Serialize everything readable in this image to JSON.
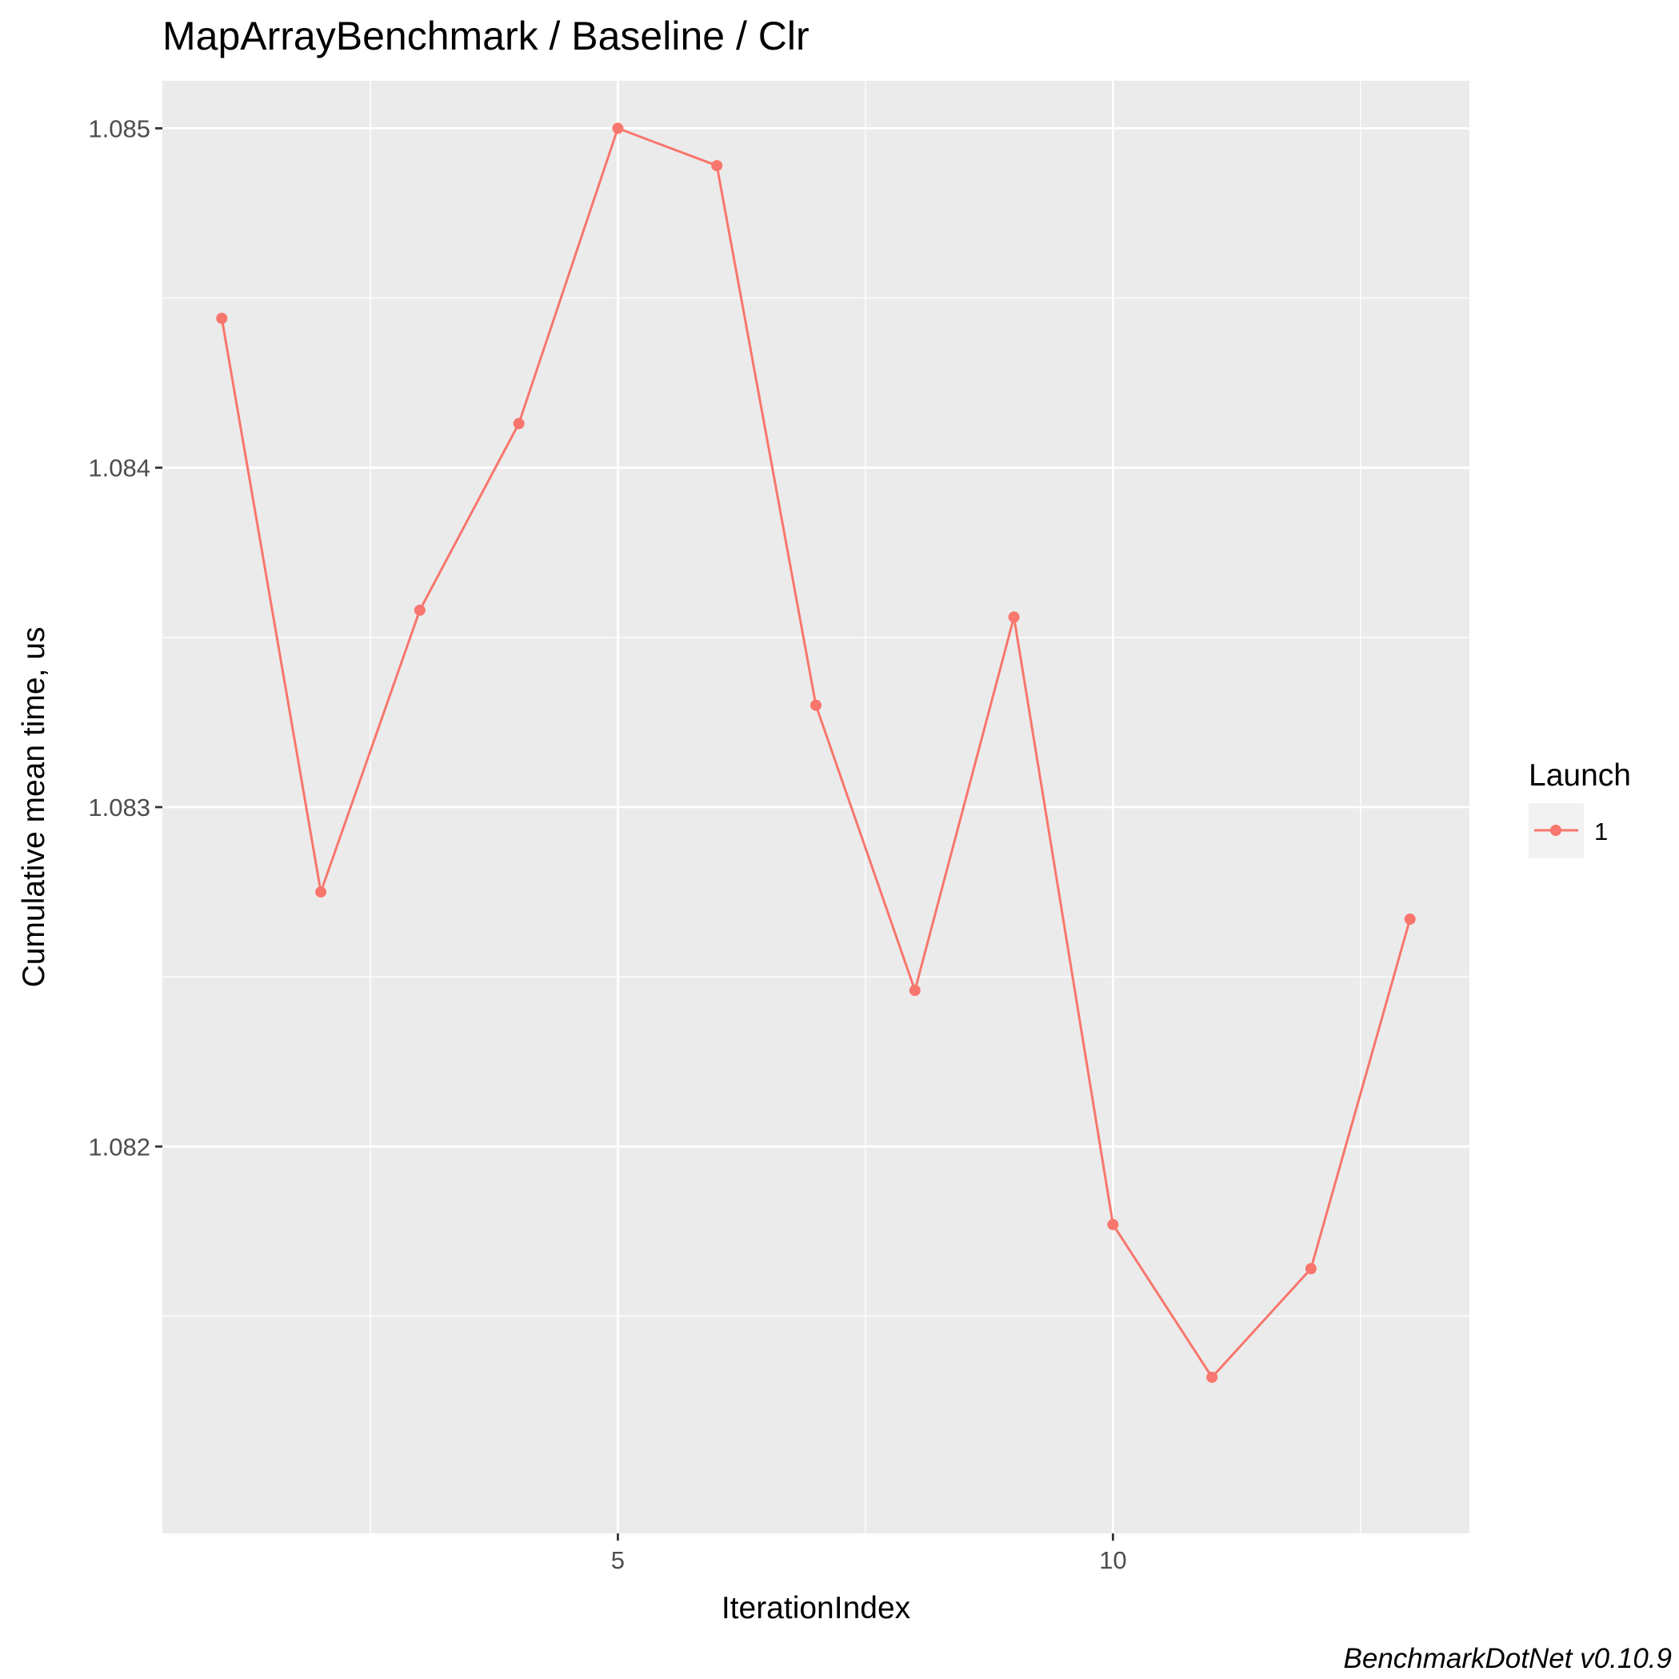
{
  "chart_data": {
    "type": "line",
    "title": "MapArrayBenchmark / Baseline / Clr",
    "xlabel": "IterationIndex",
    "ylabel": "Cumulative mean time, us",
    "caption": "BenchmarkDotNet v0.10.9",
    "x_ticks": [
      5,
      10
    ],
    "x_tick_labels": [
      "5",
      "10"
    ],
    "y_ticks": [
      1.082,
      1.083,
      1.084,
      1.085
    ],
    "y_tick_labels": [
      "1.082",
      "1.083",
      "1.084",
      "1.085"
    ],
    "xlim": [
      0.4,
      13.6
    ],
    "ylim": [
      1.08086,
      1.08514
    ],
    "grid": true,
    "legend": {
      "title": "Launch",
      "position": "right"
    },
    "series": [
      {
        "name": "1",
        "color": "#F8766D",
        "x": [
          1,
          2,
          3,
          4,
          5,
          6,
          7,
          8,
          9,
          10,
          11,
          12,
          13
        ],
        "values": [
          1.08444,
          1.08275,
          1.08358,
          1.08413,
          1.085,
          1.08489,
          1.0833,
          1.08246,
          1.08356,
          1.08177,
          1.08132,
          1.08164,
          1.08267
        ]
      }
    ]
  }
}
